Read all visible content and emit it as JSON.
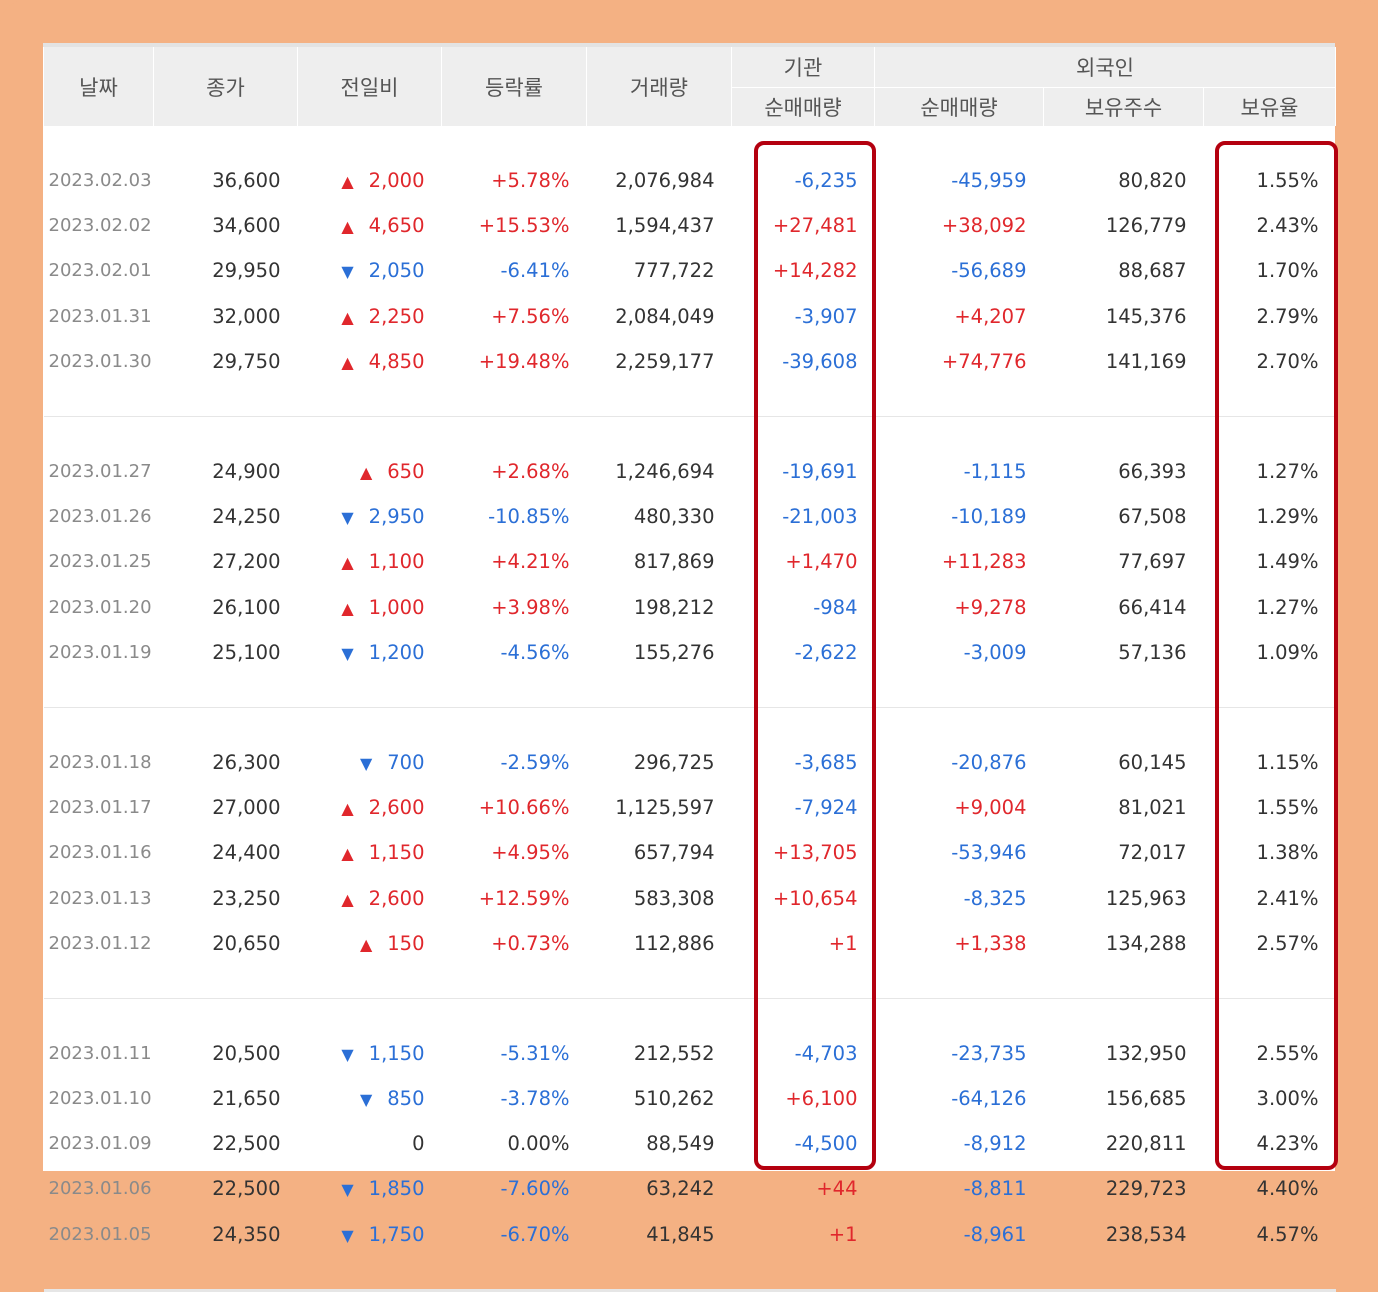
{
  "headers": {
    "date": "날짜",
    "close": "종가",
    "change": "전일비",
    "rate": "등락률",
    "volume": "거래량",
    "institution_group": "기관",
    "institution_net": "순매매량",
    "foreign_group": "외국인",
    "foreign_net": "순매매량",
    "foreign_holdings": "보유주수",
    "foreign_ratio": "보유율"
  },
  "arrows": {
    "up": "▲",
    "down": "▼"
  },
  "colors": {
    "up": "#e0272c",
    "down": "#2b6fd6",
    "highlight": "#b4000f",
    "background": "#f4b183"
  },
  "groups": [
    [
      {
        "date": "2023.02.03",
        "close": "36,600",
        "dir": "up",
        "change": "2,000",
        "rate": "+5.78%",
        "volume": "2,076,984",
        "inst": "-6,235",
        "foreign": "-45,959",
        "holdings": "80,820",
        "ratio": "1.55%"
      },
      {
        "date": "2023.02.02",
        "close": "34,600",
        "dir": "up",
        "change": "4,650",
        "rate": "+15.53%",
        "volume": "1,594,437",
        "inst": "+27,481",
        "foreign": "+38,092",
        "holdings": "126,779",
        "ratio": "2.43%"
      },
      {
        "date": "2023.02.01",
        "close": "29,950",
        "dir": "down",
        "change": "2,050",
        "rate": "-6.41%",
        "volume": "777,722",
        "inst": "+14,282",
        "foreign": "-56,689",
        "holdings": "88,687",
        "ratio": "1.70%"
      },
      {
        "date": "2023.01.31",
        "close": "32,000",
        "dir": "up",
        "change": "2,250",
        "rate": "+7.56%",
        "volume": "2,084,049",
        "inst": "-3,907",
        "foreign": "+4,207",
        "holdings": "145,376",
        "ratio": "2.79%"
      },
      {
        "date": "2023.01.30",
        "close": "29,750",
        "dir": "up",
        "change": "4,850",
        "rate": "+19.48%",
        "volume": "2,259,177",
        "inst": "-39,608",
        "foreign": "+74,776",
        "holdings": "141,169",
        "ratio": "2.70%"
      }
    ],
    [
      {
        "date": "2023.01.27",
        "close": "24,900",
        "dir": "up",
        "change": "650",
        "rate": "+2.68%",
        "volume": "1,246,694",
        "inst": "-19,691",
        "foreign": "-1,115",
        "holdings": "66,393",
        "ratio": "1.27%"
      },
      {
        "date": "2023.01.26",
        "close": "24,250",
        "dir": "down",
        "change": "2,950",
        "rate": "-10.85%",
        "volume": "480,330",
        "inst": "-21,003",
        "foreign": "-10,189",
        "holdings": "67,508",
        "ratio": "1.29%"
      },
      {
        "date": "2023.01.25",
        "close": "27,200",
        "dir": "up",
        "change": "1,100",
        "rate": "+4.21%",
        "volume": "817,869",
        "inst": "+1,470",
        "foreign": "+11,283",
        "holdings": "77,697",
        "ratio": "1.49%"
      },
      {
        "date": "2023.01.20",
        "close": "26,100",
        "dir": "up",
        "change": "1,000",
        "rate": "+3.98%",
        "volume": "198,212",
        "inst": "-984",
        "foreign": "+9,278",
        "holdings": "66,414",
        "ratio": "1.27%"
      },
      {
        "date": "2023.01.19",
        "close": "25,100",
        "dir": "down",
        "change": "1,200",
        "rate": "-4.56%",
        "volume": "155,276",
        "inst": "-2,622",
        "foreign": "-3,009",
        "holdings": "57,136",
        "ratio": "1.09%"
      }
    ],
    [
      {
        "date": "2023.01.18",
        "close": "26,300",
        "dir": "down",
        "change": "700",
        "rate": "-2.59%",
        "volume": "296,725",
        "inst": "-3,685",
        "foreign": "-20,876",
        "holdings": "60,145",
        "ratio": "1.15%"
      },
      {
        "date": "2023.01.17",
        "close": "27,000",
        "dir": "up",
        "change": "2,600",
        "rate": "+10.66%",
        "volume": "1,125,597",
        "inst": "-7,924",
        "foreign": "+9,004",
        "holdings": "81,021",
        "ratio": "1.55%"
      },
      {
        "date": "2023.01.16",
        "close": "24,400",
        "dir": "up",
        "change": "1,150",
        "rate": "+4.95%",
        "volume": "657,794",
        "inst": "+13,705",
        "foreign": "-53,946",
        "holdings": "72,017",
        "ratio": "1.38%"
      },
      {
        "date": "2023.01.13",
        "close": "23,250",
        "dir": "up",
        "change": "2,600",
        "rate": "+12.59%",
        "volume": "583,308",
        "inst": "+10,654",
        "foreign": "-8,325",
        "holdings": "125,963",
        "ratio": "2.41%"
      },
      {
        "date": "2023.01.12",
        "close": "20,650",
        "dir": "up",
        "change": "150",
        "rate": "+0.73%",
        "volume": "112,886",
        "inst": "+1",
        "foreign": "+1,338",
        "holdings": "134,288",
        "ratio": "2.57%"
      }
    ],
    [
      {
        "date": "2023.01.11",
        "close": "20,500",
        "dir": "down",
        "change": "1,150",
        "rate": "-5.31%",
        "volume": "212,552",
        "inst": "-4,703",
        "foreign": "-23,735",
        "holdings": "132,950",
        "ratio": "2.55%"
      },
      {
        "date": "2023.01.10",
        "close": "21,650",
        "dir": "down",
        "change": "850",
        "rate": "-3.78%",
        "volume": "510,262",
        "inst": "+6,100",
        "foreign": "-64,126",
        "holdings": "156,685",
        "ratio": "3.00%"
      },
      {
        "date": "2023.01.09",
        "close": "22,500",
        "dir": "none",
        "change": "0",
        "rate": "0.00%",
        "volume": "88,549",
        "inst": "-4,500",
        "foreign": "-8,912",
        "holdings": "220,811",
        "ratio": "4.23%"
      },
      {
        "date": "2023.01.06",
        "close": "22,500",
        "dir": "down",
        "change": "1,850",
        "rate": "-7.60%",
        "volume": "63,242",
        "inst": "+44",
        "foreign": "-8,811",
        "holdings": "229,723",
        "ratio": "4.40%"
      },
      {
        "date": "2023.01.05",
        "close": "24,350",
        "dir": "down",
        "change": "1,750",
        "rate": "-6.70%",
        "volume": "41,845",
        "inst": "+1",
        "foreign": "-8,961",
        "holdings": "238,534",
        "ratio": "4.57%"
      }
    ]
  ]
}
